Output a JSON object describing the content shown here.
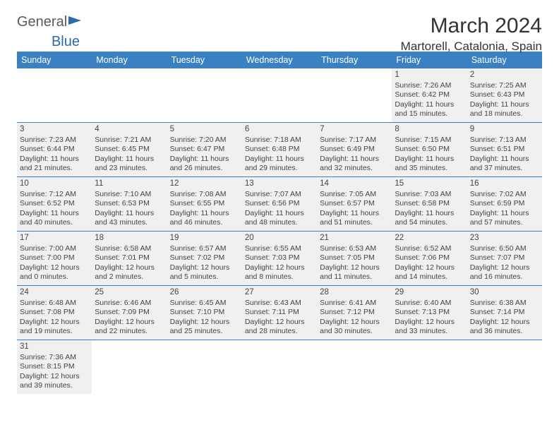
{
  "branding": {
    "general": "General",
    "blue": "Blue"
  },
  "title": "March 2024",
  "location": "Martorell, Catalonia, Spain",
  "colors": {
    "header_bg": "#3a81c4",
    "header_text": "#ffffff",
    "cell_bg": "#f0f0f0",
    "border": "#3a81c4",
    "text": "#444444"
  },
  "daysOfWeek": [
    "Sunday",
    "Monday",
    "Tuesday",
    "Wednesday",
    "Thursday",
    "Friday",
    "Saturday"
  ],
  "weeks": [
    [
      null,
      null,
      null,
      null,
      null,
      {
        "n": "1",
        "sr": "Sunrise: 7:26 AM",
        "ss": "Sunset: 6:42 PM",
        "d1": "Daylight: 11 hours",
        "d2": "and 15 minutes."
      },
      {
        "n": "2",
        "sr": "Sunrise: 7:25 AM",
        "ss": "Sunset: 6:43 PM",
        "d1": "Daylight: 11 hours",
        "d2": "and 18 minutes."
      }
    ],
    [
      {
        "n": "3",
        "sr": "Sunrise: 7:23 AM",
        "ss": "Sunset: 6:44 PM",
        "d1": "Daylight: 11 hours",
        "d2": "and 21 minutes."
      },
      {
        "n": "4",
        "sr": "Sunrise: 7:21 AM",
        "ss": "Sunset: 6:45 PM",
        "d1": "Daylight: 11 hours",
        "d2": "and 23 minutes."
      },
      {
        "n": "5",
        "sr": "Sunrise: 7:20 AM",
        "ss": "Sunset: 6:47 PM",
        "d1": "Daylight: 11 hours",
        "d2": "and 26 minutes."
      },
      {
        "n": "6",
        "sr": "Sunrise: 7:18 AM",
        "ss": "Sunset: 6:48 PM",
        "d1": "Daylight: 11 hours",
        "d2": "and 29 minutes."
      },
      {
        "n": "7",
        "sr": "Sunrise: 7:17 AM",
        "ss": "Sunset: 6:49 PM",
        "d1": "Daylight: 11 hours",
        "d2": "and 32 minutes."
      },
      {
        "n": "8",
        "sr": "Sunrise: 7:15 AM",
        "ss": "Sunset: 6:50 PM",
        "d1": "Daylight: 11 hours",
        "d2": "and 35 minutes."
      },
      {
        "n": "9",
        "sr": "Sunrise: 7:13 AM",
        "ss": "Sunset: 6:51 PM",
        "d1": "Daylight: 11 hours",
        "d2": "and 37 minutes."
      }
    ],
    [
      {
        "n": "10",
        "sr": "Sunrise: 7:12 AM",
        "ss": "Sunset: 6:52 PM",
        "d1": "Daylight: 11 hours",
        "d2": "and 40 minutes."
      },
      {
        "n": "11",
        "sr": "Sunrise: 7:10 AM",
        "ss": "Sunset: 6:53 PM",
        "d1": "Daylight: 11 hours",
        "d2": "and 43 minutes."
      },
      {
        "n": "12",
        "sr": "Sunrise: 7:08 AM",
        "ss": "Sunset: 6:55 PM",
        "d1": "Daylight: 11 hours",
        "d2": "and 46 minutes."
      },
      {
        "n": "13",
        "sr": "Sunrise: 7:07 AM",
        "ss": "Sunset: 6:56 PM",
        "d1": "Daylight: 11 hours",
        "d2": "and 48 minutes."
      },
      {
        "n": "14",
        "sr": "Sunrise: 7:05 AM",
        "ss": "Sunset: 6:57 PM",
        "d1": "Daylight: 11 hours",
        "d2": "and 51 minutes."
      },
      {
        "n": "15",
        "sr": "Sunrise: 7:03 AM",
        "ss": "Sunset: 6:58 PM",
        "d1": "Daylight: 11 hours",
        "d2": "and 54 minutes."
      },
      {
        "n": "16",
        "sr": "Sunrise: 7:02 AM",
        "ss": "Sunset: 6:59 PM",
        "d1": "Daylight: 11 hours",
        "d2": "and 57 minutes."
      }
    ],
    [
      {
        "n": "17",
        "sr": "Sunrise: 7:00 AM",
        "ss": "Sunset: 7:00 PM",
        "d1": "Daylight: 12 hours",
        "d2": "and 0 minutes."
      },
      {
        "n": "18",
        "sr": "Sunrise: 6:58 AM",
        "ss": "Sunset: 7:01 PM",
        "d1": "Daylight: 12 hours",
        "d2": "and 2 minutes."
      },
      {
        "n": "19",
        "sr": "Sunrise: 6:57 AM",
        "ss": "Sunset: 7:02 PM",
        "d1": "Daylight: 12 hours",
        "d2": "and 5 minutes."
      },
      {
        "n": "20",
        "sr": "Sunrise: 6:55 AM",
        "ss": "Sunset: 7:03 PM",
        "d1": "Daylight: 12 hours",
        "d2": "and 8 minutes."
      },
      {
        "n": "21",
        "sr": "Sunrise: 6:53 AM",
        "ss": "Sunset: 7:05 PM",
        "d1": "Daylight: 12 hours",
        "d2": "and 11 minutes."
      },
      {
        "n": "22",
        "sr": "Sunrise: 6:52 AM",
        "ss": "Sunset: 7:06 PM",
        "d1": "Daylight: 12 hours",
        "d2": "and 14 minutes."
      },
      {
        "n": "23",
        "sr": "Sunrise: 6:50 AM",
        "ss": "Sunset: 7:07 PM",
        "d1": "Daylight: 12 hours",
        "d2": "and 16 minutes."
      }
    ],
    [
      {
        "n": "24",
        "sr": "Sunrise: 6:48 AM",
        "ss": "Sunset: 7:08 PM",
        "d1": "Daylight: 12 hours",
        "d2": "and 19 minutes."
      },
      {
        "n": "25",
        "sr": "Sunrise: 6:46 AM",
        "ss": "Sunset: 7:09 PM",
        "d1": "Daylight: 12 hours",
        "d2": "and 22 minutes."
      },
      {
        "n": "26",
        "sr": "Sunrise: 6:45 AM",
        "ss": "Sunset: 7:10 PM",
        "d1": "Daylight: 12 hours",
        "d2": "and 25 minutes."
      },
      {
        "n": "27",
        "sr": "Sunrise: 6:43 AM",
        "ss": "Sunset: 7:11 PM",
        "d1": "Daylight: 12 hours",
        "d2": "and 28 minutes."
      },
      {
        "n": "28",
        "sr": "Sunrise: 6:41 AM",
        "ss": "Sunset: 7:12 PM",
        "d1": "Daylight: 12 hours",
        "d2": "and 30 minutes."
      },
      {
        "n": "29",
        "sr": "Sunrise: 6:40 AM",
        "ss": "Sunset: 7:13 PM",
        "d1": "Daylight: 12 hours",
        "d2": "and 33 minutes."
      },
      {
        "n": "30",
        "sr": "Sunrise: 6:38 AM",
        "ss": "Sunset: 7:14 PM",
        "d1": "Daylight: 12 hours",
        "d2": "and 36 minutes."
      }
    ],
    [
      {
        "n": "31",
        "sr": "Sunrise: 7:36 AM",
        "ss": "Sunset: 8:15 PM",
        "d1": "Daylight: 12 hours",
        "d2": "and 39 minutes."
      },
      null,
      null,
      null,
      null,
      null,
      null
    ]
  ]
}
